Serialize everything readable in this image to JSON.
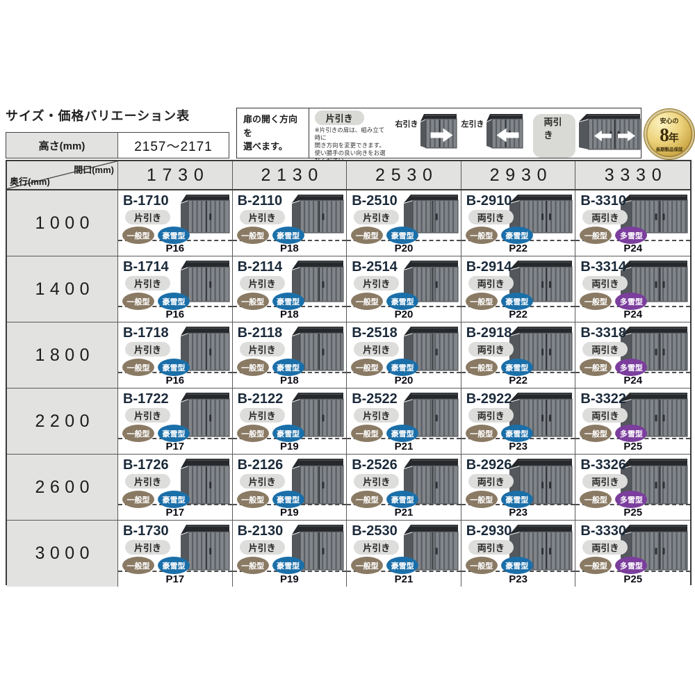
{
  "page": {
    "title": "サイズ・価格バリエーション表"
  },
  "height_table": {
    "label": "高さ(mm)",
    "value": "2157〜2171"
  },
  "legend": {
    "intro": "扉の開く方向を\n選べます。",
    "kata_label": "片引き",
    "note": "※片引きの扉は、組み立て時に\n開き方向を変更できます。\n使い勝手の良い向きをお選びください。",
    "right_label": "右引き",
    "left_label": "左引き",
    "ryo_label": "両引き"
  },
  "warranty_badge": {
    "line1": "安心の",
    "num": "8",
    "unit": "年",
    "line3": "長期製品保証"
  },
  "table": {
    "corner_top": "間口(mm)",
    "corner_bottom": "奥行(mm)",
    "col_headers": [
      "1730",
      "2130",
      "2530",
      "2930",
      "3330"
    ],
    "rows": [
      {
        "depth": "1000",
        "cells": [
          {
            "model": "B-1710",
            "door": "片引き",
            "types": [
              "一般型",
              "豪雪型"
            ],
            "page": "P16"
          },
          {
            "model": "B-2110",
            "door": "片引き",
            "types": [
              "一般型",
              "豪雪型"
            ],
            "page": "P18"
          },
          {
            "model": "B-2510",
            "door": "片引き",
            "types": [
              "一般型",
              "豪雪型"
            ],
            "page": "P20"
          },
          {
            "model": "B-2910",
            "door": "両引き",
            "types": [
              "一般型",
              "豪雪型"
            ],
            "page": "P22"
          },
          {
            "model": "B-3310",
            "door": "両引き",
            "types": [
              "一般型",
              "多雪型"
            ],
            "page": "P24"
          }
        ]
      },
      {
        "depth": "1400",
        "cells": [
          {
            "model": "B-1714",
            "door": "片引き",
            "types": [
              "一般型",
              "豪雪型"
            ],
            "page": "P16"
          },
          {
            "model": "B-2114",
            "door": "片引き",
            "types": [
              "一般型",
              "豪雪型"
            ],
            "page": "P18"
          },
          {
            "model": "B-2514",
            "door": "片引き",
            "types": [
              "一般型",
              "豪雪型"
            ],
            "page": "P20"
          },
          {
            "model": "B-2914",
            "door": "両引き",
            "types": [
              "一般型",
              "豪雪型"
            ],
            "page": "P22"
          },
          {
            "model": "B-3314",
            "door": "両引き",
            "types": [
              "一般型",
              "多雪型"
            ],
            "page": "P24"
          }
        ]
      },
      {
        "depth": "1800",
        "cells": [
          {
            "model": "B-1718",
            "door": "片引き",
            "types": [
              "一般型",
              "豪雪型"
            ],
            "page": "P16"
          },
          {
            "model": "B-2118",
            "door": "片引き",
            "types": [
              "一般型",
              "豪雪型"
            ],
            "page": "P18"
          },
          {
            "model": "B-2518",
            "door": "片引き",
            "types": [
              "一般型",
              "豪雪型"
            ],
            "page": "P20"
          },
          {
            "model": "B-2918",
            "door": "両引き",
            "types": [
              "一般型",
              "豪雪型"
            ],
            "page": "P22"
          },
          {
            "model": "B-3318",
            "door": "両引き",
            "types": [
              "一般型",
              "多雪型"
            ],
            "page": "P24"
          }
        ]
      },
      {
        "depth": "2200",
        "cells": [
          {
            "model": "B-1722",
            "door": "片引き",
            "types": [
              "一般型",
              "豪雪型"
            ],
            "page": "P17"
          },
          {
            "model": "B-2122",
            "door": "片引き",
            "types": [
              "一般型",
              "豪雪型"
            ],
            "page": "P19"
          },
          {
            "model": "B-2522",
            "door": "片引き",
            "types": [
              "一般型",
              "豪雪型"
            ],
            "page": "P21"
          },
          {
            "model": "B-2922",
            "door": "両引き",
            "types": [
              "一般型",
              "豪雪型"
            ],
            "page": "P23"
          },
          {
            "model": "B-3322",
            "door": "両引き",
            "types": [
              "一般型",
              "多雪型"
            ],
            "page": "P25"
          }
        ]
      },
      {
        "depth": "2600",
        "cells": [
          {
            "model": "B-1726",
            "door": "片引き",
            "types": [
              "一般型",
              "豪雪型"
            ],
            "page": "P17"
          },
          {
            "model": "B-2126",
            "door": "片引き",
            "types": [
              "一般型",
              "豪雪型"
            ],
            "page": "P19"
          },
          {
            "model": "B-2526",
            "door": "片引き",
            "types": [
              "一般型",
              "豪雪型"
            ],
            "page": "P21"
          },
          {
            "model": "B-2926",
            "door": "両引き",
            "types": [
              "一般型",
              "豪雪型"
            ],
            "page": "P23"
          },
          {
            "model": "B-3326",
            "door": "両引き",
            "types": [
              "一般型",
              "多雪型"
            ],
            "page": "P25"
          }
        ]
      },
      {
        "depth": "3000",
        "cells": [
          {
            "model": "B-1730",
            "door": "片引き",
            "types": [
              "一般型",
              "豪雪型"
            ],
            "page": "P17"
          },
          {
            "model": "B-2130",
            "door": "片引き",
            "types": [
              "一般型",
              "豪雪型"
            ],
            "page": "P19"
          },
          {
            "model": "B-2530",
            "door": "片引き",
            "types": [
              "一般型",
              "豪雪型"
            ],
            "page": "P21"
          },
          {
            "model": "B-2930",
            "door": "両引き",
            "types": [
              "一般型",
              "豪雪型"
            ],
            "page": "P23"
          },
          {
            "model": "B-3330",
            "door": "両引き",
            "types": [
              "一般型",
              "多雪型"
            ],
            "page": "P25"
          }
        ]
      }
    ]
  },
  "colors": {
    "badge_general": "#8a7a64",
    "badge_heavy_snow": "#1b6fa9",
    "badge_multi_snow": "#7b3e9d",
    "header_bg": "#e2e2e0",
    "model_text": "#1b2a3a",
    "gold": "#c9a544",
    "shed_front": "#82868b",
    "shed_side": "#54585c",
    "shed_roof": "#26282b"
  }
}
